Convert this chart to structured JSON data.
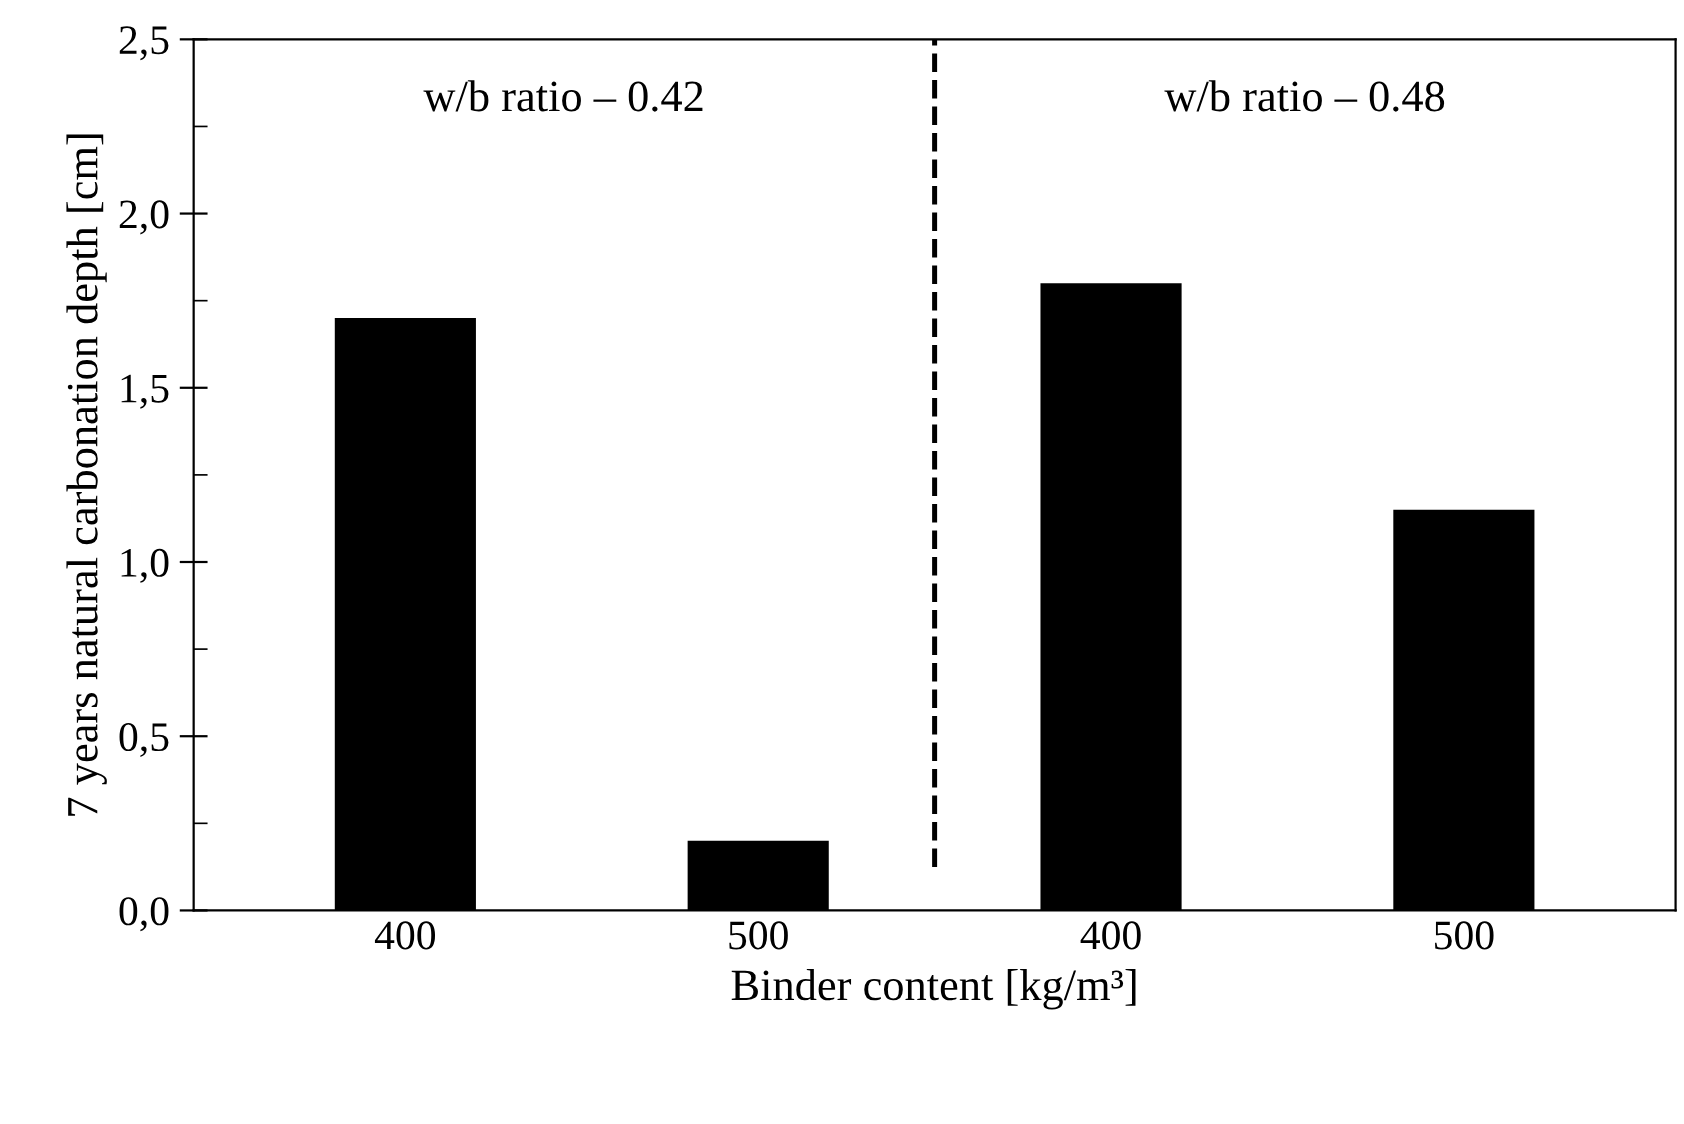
{
  "chart_data": {
    "type": "bar",
    "xlabel": "Binder content [kg/m³]",
    "ylabel": "7 years natural carbonation depth [cm]",
    "categories": [
      "400",
      "500",
      "400",
      "500"
    ],
    "values": [
      1.7,
      0.2,
      1.8,
      1.15
    ],
    "color": "#000000",
    "ylim": [
      0,
      2.5
    ],
    "yticks": [
      {
        "value": 0,
        "label": "0,0"
      },
      {
        "value": 0.25,
        "label": null
      },
      {
        "value": 0.5,
        "label": "0,5"
      },
      {
        "value": 0.75,
        "label": null
      },
      {
        "value": 1.0,
        "label": "1,0"
      },
      {
        "value": 1.25,
        "label": null
      },
      {
        "value": 1.5,
        "label": "1,5"
      },
      {
        "value": 1.75,
        "label": null
      },
      {
        "value": 2.0,
        "label": "2,0"
      },
      {
        "value": 2.25,
        "label": null
      },
      {
        "value": 2.5,
        "label": "2,5"
      }
    ],
    "annotations": [
      "w/b ratio – 0.42",
      "w/b ratio – 0.48"
    ],
    "grid": false,
    "legend": false
  }
}
